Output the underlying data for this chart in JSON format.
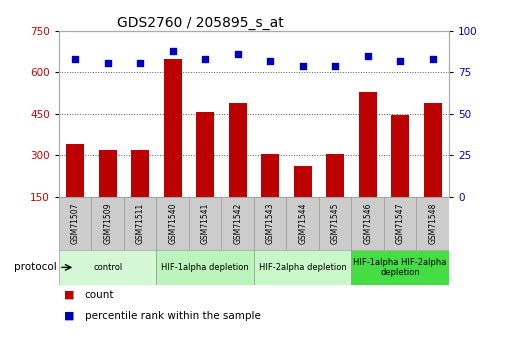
{
  "title": "GDS2760 / 205895_s_at",
  "samples": [
    "GSM71507",
    "GSM71509",
    "GSM71511",
    "GSM71540",
    "GSM71541",
    "GSM71542",
    "GSM71543",
    "GSM71544",
    "GSM71545",
    "GSM71546",
    "GSM71547",
    "GSM71548"
  ],
  "counts": [
    340,
    320,
    320,
    650,
    455,
    490,
    305,
    260,
    305,
    530,
    445,
    490
  ],
  "percentile_ranks": [
    83,
    81,
    81,
    88,
    83,
    86,
    82,
    79,
    79,
    85,
    82,
    83
  ],
  "ylim_left": [
    150,
    750
  ],
  "ylim_right": [
    0,
    100
  ],
  "yticks_left": [
    150,
    300,
    450,
    600,
    750
  ],
  "yticks_right": [
    0,
    25,
    50,
    75,
    100
  ],
  "bar_color": "#bb0000",
  "dot_color": "#0000bb",
  "protocol_groups": [
    {
      "label": "control",
      "start": 0,
      "end": 3,
      "color": "#d4f7d4"
    },
    {
      "label": "HIF-1alpha depletion",
      "start": 3,
      "end": 6,
      "color": "#bbf5bb"
    },
    {
      "label": "HIF-2alpha depletion",
      "start": 6,
      "end": 9,
      "color": "#c8f7c8"
    },
    {
      "label": "HIF-1alpha HIF-2alpha\ndepletion",
      "start": 9,
      "end": 12,
      "color": "#44dd44"
    }
  ],
  "protocol_label": "protocol",
  "legend_count_label": "count",
  "legend_pct_label": "percentile rank within the sample",
  "grid_color": "#555555",
  "background_color": "#ffffff",
  "tick_label_color_left": "#cc0000",
  "tick_label_color_right": "#0000cc",
  "sample_box_color": "#cccccc",
  "sample_box_edge": "#999999",
  "plot_border_color": "#aaaaaa"
}
